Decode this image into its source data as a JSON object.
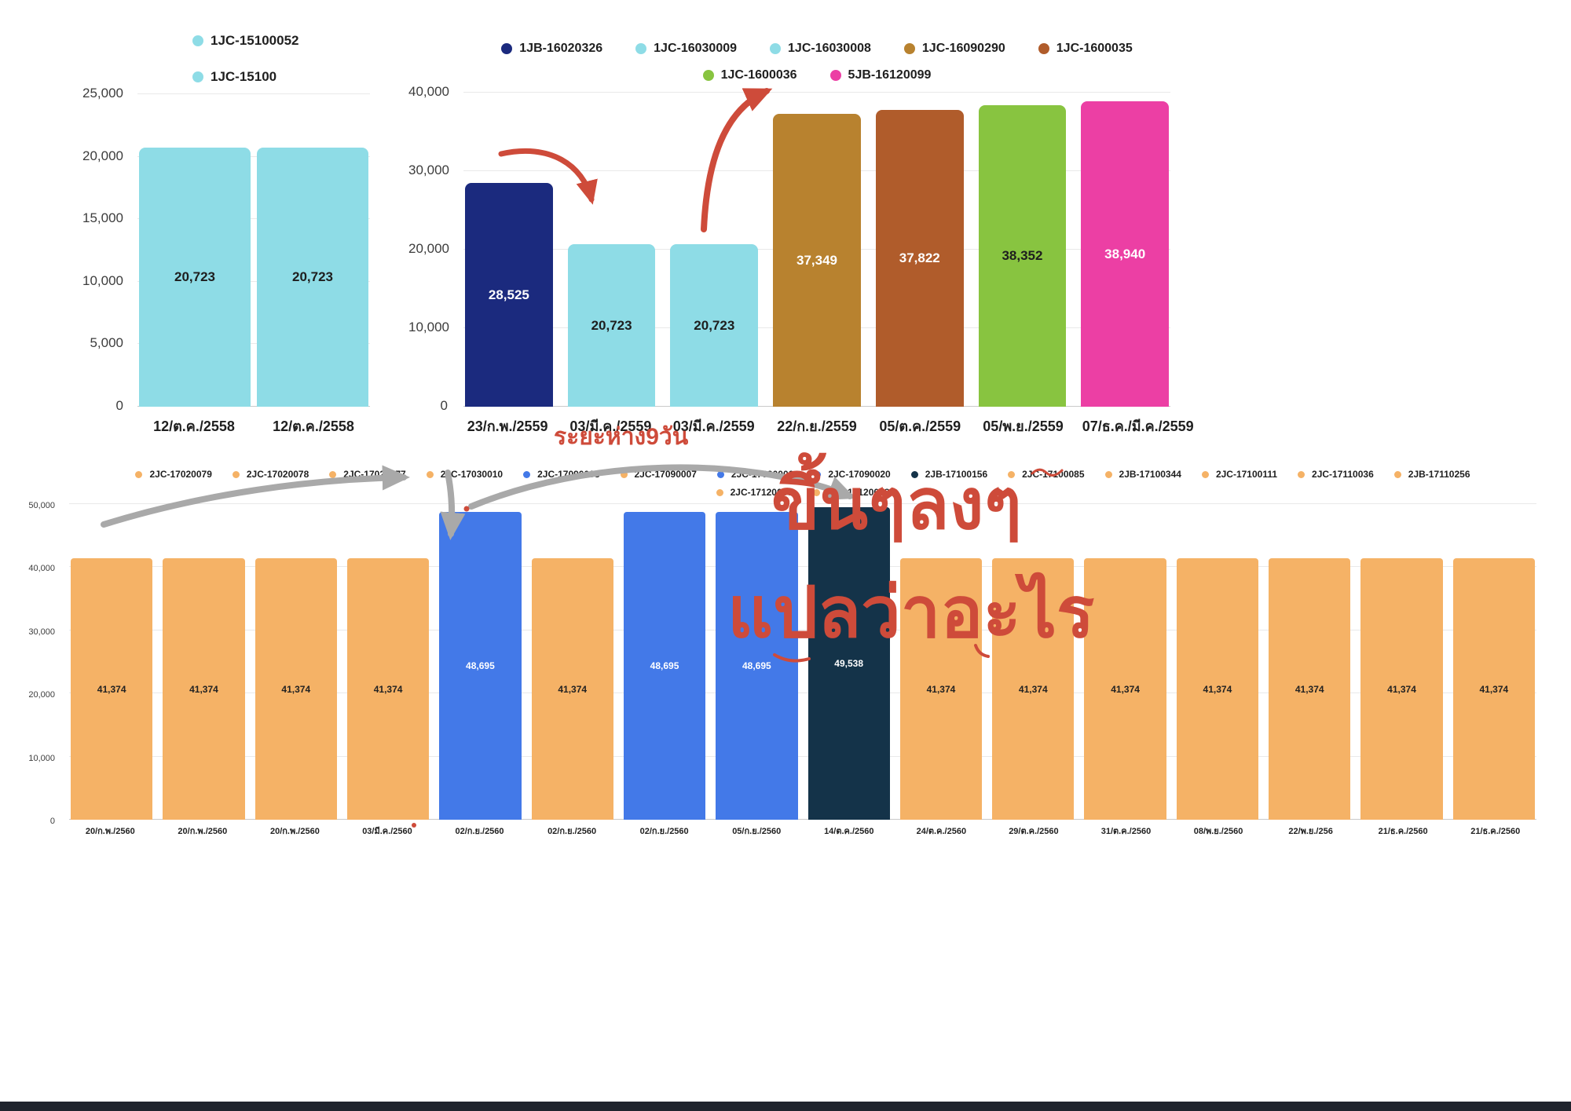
{
  "colors": {
    "annotation_red": "#CE4B3A",
    "annotation_gray": "#A9A9A9",
    "taskbar": "#20242D"
  },
  "annotations": {
    "gap_note": "ระยะห่าง9วัน",
    "updown_note": "ขึ้นๆลงๆ",
    "meaning_note": "แปลว่าอะไร"
  },
  "chart_data": [
    {
      "id": "chart1",
      "type": "bar",
      "title": "",
      "xlabel": "",
      "ylabel": "",
      "ylim": [
        0,
        25000
      ],
      "yticks": [
        0,
        5000,
        10000,
        15000,
        20000,
        25000
      ],
      "grid": true,
      "legend_position": "top-left",
      "legend_rows": [
        1,
        1
      ],
      "legend": [
        {
          "label": "1JC-15100052",
          "color": "#8EDCE6"
        },
        {
          "label": "1JC-15100",
          "color": "#8EDCE6"
        }
      ],
      "categories": [
        "12/ต.ค./2558",
        "12/ต.ค./2558"
      ],
      "values": [
        20723,
        20723
      ],
      "data_labels": [
        "20,723",
        "20,723"
      ],
      "bar_colors": [
        "#8EDCE6",
        "#8EDCE6"
      ],
      "label_colors": [
        "#1e1e1e",
        "#1e1e1e"
      ]
    },
    {
      "id": "chart2",
      "type": "bar",
      "title": "",
      "xlabel": "",
      "ylabel": "",
      "ylim": [
        0,
        40000
      ],
      "yticks": [
        0,
        10000,
        20000,
        30000,
        40000
      ],
      "grid": true,
      "legend_position": "top-center",
      "legend_rows": [
        5,
        2
      ],
      "legend": [
        {
          "label": "1JB-16020326",
          "color": "#1B2A7E"
        },
        {
          "label": "1JC-16030009",
          "color": "#8EDCE6"
        },
        {
          "label": "1JC-16030008",
          "color": "#8EDCE6"
        },
        {
          "label": "1JC-16090290",
          "color": "#B8822F"
        },
        {
          "label": "1JC-1600035",
          "color": "#B05C2B"
        },
        {
          "label": "1JC-1600036",
          "color": "#88C440"
        },
        {
          "label": "5JB-16120099",
          "color": "#EC3FA4"
        }
      ],
      "categories": [
        "23/ก.พ./2559",
        "03/มี.ค./2559",
        "03/มี.ค./2559",
        "22/ก.ย./2559",
        "05/ต.ค./2559",
        "05/พ.ย./2559",
        "07/ธ.ค./มี.ค./2559"
      ],
      "values": [
        28525,
        20723,
        20723,
        37349,
        37822,
        38352,
        38940
      ],
      "data_labels": [
        "28,525",
        "20,723",
        "20,723",
        "37,349",
        "37,822",
        "38,352",
        "38,940"
      ],
      "bar_colors": [
        "#1B2A7E",
        "#8EDCE6",
        "#8EDCE6",
        "#B8822F",
        "#B05C2B",
        "#88C440",
        "#EC3FA4"
      ],
      "label_colors": [
        "#ffffff",
        "#1e1e1e",
        "#1e1e1e",
        "#ffffff",
        "#ffffff",
        "#1e1e1e",
        "#ffffff"
      ]
    },
    {
      "id": "chart3",
      "type": "bar",
      "title": "",
      "xlabel": "",
      "ylabel": "",
      "ylim": [
        0,
        50000
      ],
      "yticks": [
        0,
        10000,
        20000,
        30000,
        40000,
        50000
      ],
      "grid": true,
      "legend_position": "top-center",
      "legend_rows": [
        14,
        2
      ],
      "legend": [
        {
          "label": "2JC-17020079",
          "color": "#F5B266"
        },
        {
          "label": "2JC-17020078",
          "color": "#F5B266"
        },
        {
          "label": "2JC-17020077",
          "color": "#F5B266"
        },
        {
          "label": "2JC-17030010",
          "color": "#F5B266"
        },
        {
          "label": "2JC-17090008",
          "color": "#4379E8"
        },
        {
          "label": "2JC-17090007",
          "color": "#F5B266"
        },
        {
          "label": "2JC-17090006",
          "color": "#4379E8"
        },
        {
          "label": "2JC-17090020",
          "color": "#4379E8"
        },
        {
          "label": "2JB-17100156",
          "color": "#143349"
        },
        {
          "label": "2JC-17100085",
          "color": "#F5B266"
        },
        {
          "label": "2JB-17100344",
          "color": "#F5B266"
        },
        {
          "label": "2JC-17100111",
          "color": "#F5B266"
        },
        {
          "label": "2JC-17110036",
          "color": "#F5B266"
        },
        {
          "label": "2JB-17110256",
          "color": "#F5B266"
        },
        {
          "label": "2JC-17120069",
          "color": "#F5B266"
        },
        {
          "label": "2JC-17120068",
          "color": "#F5B266"
        }
      ],
      "categories": [
        "20/ก.พ./2560",
        "20/ก.พ./2560",
        "20/ก.พ./2560",
        "03/มี.ค./2560",
        "02/ก.ย./2560",
        "02/ก.ย./2560",
        "02/ก.ย./2560",
        "05/ก.ย./2560",
        "14/ต.ค./2560",
        "24/ต.ค./2560",
        "29/ต.ค./2560",
        "31/ต.ค./2560",
        "08/พ.ย./2560",
        "22/พ.ย./256",
        "21/ธ.ค./2560",
        "21/ธ.ค./2560"
      ],
      "values": [
        41374,
        41374,
        41374,
        41374,
        48695,
        41374,
        48695,
        48695,
        49538,
        41374,
        41374,
        41374,
        41374,
        41374,
        41374,
        41374
      ],
      "data_labels": [
        "41,374",
        "41,374",
        "41,374",
        "41,374",
        "48,695",
        "41,374",
        "48,695",
        "48,695",
        "49,538",
        "41,374",
        "41,374",
        "41,374",
        "41,374",
        "41,374",
        "41,374",
        "41,374"
      ],
      "bar_colors": [
        "#F5B266",
        "#F5B266",
        "#F5B266",
        "#F5B266",
        "#4379E8",
        "#F5B266",
        "#4379E8",
        "#4379E8",
        "#143349",
        "#F5B266",
        "#F5B266",
        "#F5B266",
        "#F5B266",
        "#F5B266",
        "#F5B266",
        "#F5B266"
      ],
      "label_colors": [
        "#222222",
        "#222222",
        "#222222",
        "#222222",
        "#ffffff",
        "#222222",
        "#ffffff",
        "#ffffff",
        "#ffffff",
        "#222222",
        "#222222",
        "#222222",
        "#222222",
        "#222222",
        "#222222",
        "#222222"
      ]
    }
  ]
}
